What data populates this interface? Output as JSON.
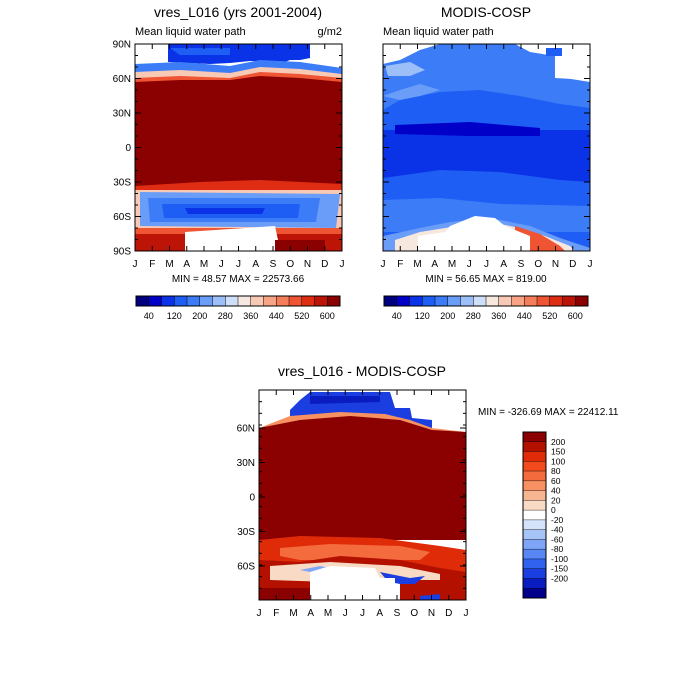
{
  "panels": [
    {
      "id": "model",
      "title": "vres_L016 (yrs 2001-2004)",
      "subtitle_left": "Mean liquid water path",
      "subtitle_right": "g/m2",
      "stats": "MIN =  48.57 MAX = 22573.66"
    },
    {
      "id": "obs",
      "title": "MODIS-COSP",
      "subtitle_left": "Mean liquid water path",
      "subtitle_right": "",
      "stats": "MIN =  56.65 MAX = 819.00"
    },
    {
      "id": "diff",
      "title": "vres_L016 - MODIS-COSP",
      "subtitle_left": "",
      "subtitle_right": "",
      "stats": "MIN = -326.69 MAX = 22412.11"
    }
  ],
  "axes": {
    "months": [
      "J",
      "F",
      "M",
      "A",
      "M",
      "J",
      "J",
      "A",
      "S",
      "O",
      "N",
      "D",
      "J"
    ],
    "lat_labels_top": [
      "90N",
      "60N",
      "30N",
      "0",
      "30S",
      "60S",
      "90S"
    ],
    "lat_labels_diff": [
      "60N",
      "30N",
      "0",
      "30S",
      "60S"
    ]
  },
  "colorbar_abs": {
    "labels": [
      "40",
      "120",
      "200",
      "280",
      "360",
      "440",
      "520",
      "600"
    ],
    "colors": [
      "#00007f",
      "#0000c8",
      "#0a32e6",
      "#1e5ef5",
      "#3c7df7",
      "#6a9df8",
      "#9dbff9",
      "#cddff9",
      "#f6e7df",
      "#f8c9b4",
      "#f6a485",
      "#f47d5a",
      "#ef5433",
      "#df2d14",
      "#bd1408",
      "#8b0000"
    ]
  },
  "colorbar_diff": {
    "labels": [
      "200",
      "150",
      "100",
      "80",
      "60",
      "40",
      "20",
      "0",
      "-20",
      "-40",
      "-60",
      "-80",
      "-100",
      "-150",
      "-200"
    ],
    "colors": [
      "#8b0000",
      "#b31000",
      "#e02b08",
      "#f24a1d",
      "#f46c3d",
      "#f79161",
      "#f8b592",
      "#f9dac5",
      "#ffffff",
      "#d4e3f9",
      "#a7c4f7",
      "#7fa6f6",
      "#5887f5",
      "#3062ef",
      "#1a3ee0",
      "#0a1cc0",
      "#00008b"
    ]
  },
  "chart_data": [
    {
      "type": "heatmap",
      "title": "vres_L016 (yrs 2001-2004)",
      "subtitle": "Mean liquid water path",
      "units": "g/m2",
      "x": [
        "J",
        "F",
        "M",
        "A",
        "M",
        "J",
        "J",
        "A",
        "S",
        "O",
        "N",
        "D",
        "J"
      ],
      "y": [
        "90N",
        "60N",
        "30N",
        "0",
        "30S",
        "60S",
        "90S"
      ],
      "ylim": [
        -90,
        90
      ],
      "colorbar_levels": [
        40,
        80,
        120,
        160,
        200,
        240,
        280,
        320,
        360,
        400,
        440,
        480,
        520,
        560,
        600
      ],
      "min": 48.57,
      "max": 22573.66
    },
    {
      "type": "heatmap",
      "title": "MODIS-COSP",
      "subtitle": "Mean liquid water path",
      "x": [
        "J",
        "F",
        "M",
        "A",
        "M",
        "J",
        "J",
        "A",
        "S",
        "O",
        "N",
        "D",
        "J"
      ],
      "y": [
        "90N",
        "60N",
        "30N",
        "0",
        "30S",
        "60S",
        "90S"
      ],
      "ylim": [
        -90,
        90
      ],
      "colorbar_levels": [
        40,
        80,
        120,
        160,
        200,
        240,
        280,
        320,
        360,
        400,
        440,
        480,
        520,
        560,
        600
      ],
      "min": 56.65,
      "max": 819.0
    },
    {
      "type": "heatmap",
      "title": "vres_L016 - MODIS-COSP",
      "x": [
        "J",
        "F",
        "M",
        "A",
        "M",
        "J",
        "J",
        "A",
        "S",
        "O",
        "N",
        "D",
        "J"
      ],
      "y": [
        "60N",
        "30N",
        "0",
        "30S",
        "60S"
      ],
      "colorbar_levels": [
        -200,
        -150,
        -100,
        -80,
        -60,
        -40,
        -20,
        0,
        20,
        40,
        60,
        80,
        100,
        150,
        200
      ],
      "min": -326.69,
      "max": 22412.11
    }
  ]
}
